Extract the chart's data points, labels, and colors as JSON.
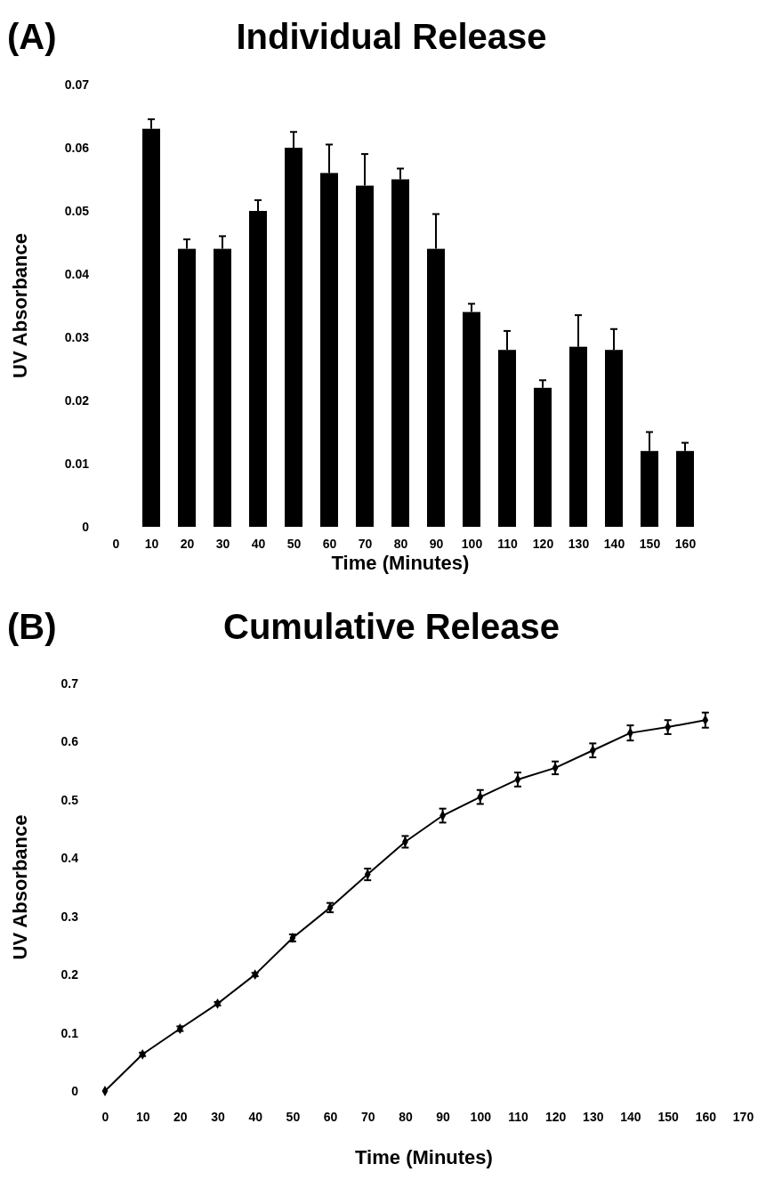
{
  "chart_data": [
    {
      "type": "bar",
      "title": "Individual Release",
      "annotations": [
        "(A)"
      ],
      "xlabel": "Time (Minutes)",
      "ylabel": "UV Absorbance",
      "categories": [
        "0",
        "10",
        "20",
        "30",
        "40",
        "50",
        "60",
        "70",
        "80",
        "90",
        "100",
        "110",
        "120",
        "130",
        "140",
        "150",
        "160"
      ],
      "values": [
        null,
        0.063,
        0.044,
        0.044,
        0.05,
        0.06,
        0.056,
        0.054,
        0.055,
        0.044,
        0.034,
        0.028,
        0.022,
        0.0285,
        0.028,
        0.012,
        0.012
      ],
      "errors": [
        null,
        [
          0.063,
          0.0645
        ],
        [
          0.044,
          0.0455
        ],
        [
          0.044,
          0.046
        ],
        [
          0.05,
          0.0517
        ],
        [
          0.06,
          0.0625
        ],
        [
          0.056,
          0.0605
        ],
        [
          0.054,
          0.059
        ],
        [
          0.055,
          0.0567
        ],
        [
          0.044,
          0.0495
        ],
        [
          0.034,
          0.0353
        ],
        [
          0.028,
          0.031
        ],
        [
          0.022,
          0.0232
        ],
        [
          0.0285,
          0.0335
        ],
        [
          0.028,
          0.0313
        ],
        [
          0.012,
          0.015
        ],
        [
          0.012,
          0.0133
        ]
      ],
      "color": "#000000",
      "ylim": [
        0,
        0.07
      ],
      "yticks": [
        0,
        0.01,
        0.02,
        0.03,
        0.04,
        0.05,
        0.06,
        0.07
      ],
      "grid": false
    },
    {
      "type": "line",
      "title": "Cumulative Release",
      "annotations": [
        "(B)"
      ],
      "xlabel": "Time (Minutes)",
      "ylabel": "UV Absorbance",
      "x": [
        0,
        10,
        20,
        30,
        40,
        50,
        60,
        70,
        80,
        90,
        100,
        110,
        120,
        130,
        140,
        150,
        160
      ],
      "values": [
        0,
        0.063,
        0.107,
        0.15,
        0.2,
        0.263,
        0.315,
        0.372,
        0.428,
        0.473,
        0.505,
        0.535,
        0.555,
        0.585,
        0.615,
        0.625,
        0.637
      ],
      "errors": [
        null,
        0.003,
        0.004,
        0.003,
        0.003,
        0.006,
        0.008,
        0.01,
        0.01,
        0.012,
        0.012,
        0.012,
        0.011,
        0.012,
        0.013,
        0.012,
        0.013
      ],
      "color": "#000000",
      "marker": "diamond",
      "line_style": "solid",
      "xlim": [
        0,
        170
      ],
      "xticks": [
        0,
        10,
        20,
        30,
        40,
        50,
        60,
        70,
        80,
        90,
        100,
        110,
        120,
        130,
        140,
        150,
        160,
        170
      ],
      "ylim": [
        0,
        0.7
      ],
      "yticks": [
        0,
        0.1,
        0.2,
        0.3,
        0.4,
        0.5,
        0.6,
        0.7
      ],
      "grid": false
    }
  ]
}
